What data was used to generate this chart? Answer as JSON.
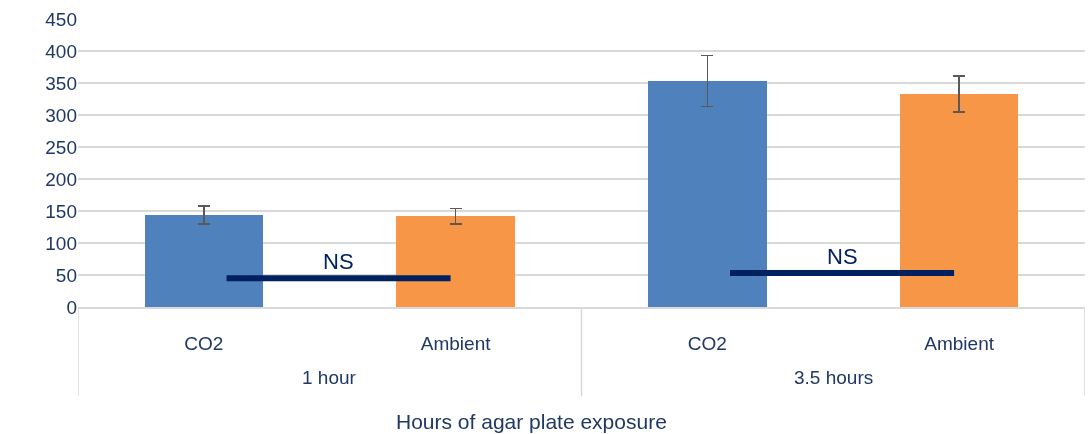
{
  "chart_data": {
    "type": "bar",
    "xlabel": "Hours of agar plate exposure",
    "categories": [
      "CO2",
      "Ambient",
      "CO2",
      "Ambient"
    ],
    "values": [
      144,
      142,
      353,
      333
    ],
    "colors": [
      "#4f81bd",
      "#f79646",
      "#4f81bd",
      "#f79646"
    ],
    "errors": [
      14,
      12,
      40,
      28
    ],
    "ylim": [
      0,
      450
    ],
    "yticks": [
      0,
      50,
      100,
      150,
      200,
      250,
      300,
      350,
      400,
      450
    ],
    "grid": "y",
    "legend": false,
    "annotations": [
      "1 hour",
      "3.5 hours",
      "NS",
      "NS"
    ]
  }
}
